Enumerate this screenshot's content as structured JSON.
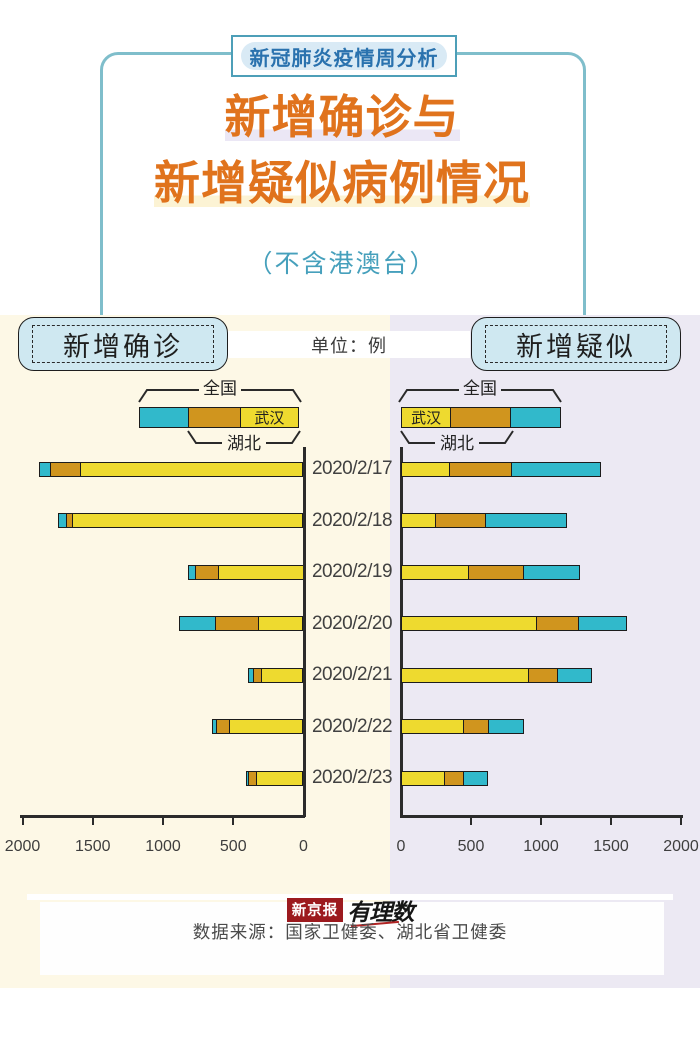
{
  "header": {
    "badge": "新冠肺炎疫情周分析",
    "title_line1": "新增确诊与",
    "title_line2": "新增疑似病例情况",
    "subtitle": "（不含港澳台）"
  },
  "labels": {
    "left_pill": "新增确诊",
    "right_pill": "新增疑似",
    "legend_national": "全国",
    "legend_hubei": "湖北",
    "legend_wuhan": "武汉"
  },
  "colors": {
    "national_cyan": "#31b9cb",
    "hubei_orange": "#d0951e",
    "wuhan_yellow": "#eeda2f",
    "bar_border": "#1c1c1c",
    "title_orange": "#e0731d",
    "teal_accent": "#7fbecb",
    "left_panel_bg": "#fdf8e6",
    "right_panel_bg": "#ece9f3"
  },
  "footer": {
    "logo_box": "新京报",
    "logo_script": "有理数",
    "source": "数据来源：国家卫健委、湖北省卫健委"
  },
  "chart_data": {
    "type": "bar",
    "layout": "mirrored-horizontal-stacked",
    "unit_label": "单位：例",
    "categories": [
      "2020/2/17",
      "2020/2/18",
      "2020/2/19",
      "2020/2/20",
      "2020/2/21",
      "2020/2/22",
      "2020/2/23"
    ],
    "axis": {
      "min": 0,
      "max": 2000,
      "ticks": [
        0,
        500,
        1000,
        1500,
        2000
      ]
    },
    "series_names": {
      "national": "全国",
      "hubei": "湖北",
      "wuhan": "武汉"
    },
    "left": {
      "title": "新增确诊",
      "national": [
        1886,
        1749,
        820,
        889,
        397,
        648,
        409
      ],
      "hubei": [
        1807,
        1693,
        775,
        631,
        366,
        630,
        398
      ],
      "wuhan": [
        1600,
        1660,
        615,
        319,
        314,
        541,
        348
      ]
    },
    "right": {
      "title": "新增疑似",
      "national": [
        1432,
        1185,
        1277,
        1614,
        1361,
        882,
        620
      ],
      "hubei": [
        790,
        600,
        875,
        1275,
        1120,
        630,
        450
      ],
      "wuhan": [
        340,
        240,
        480,
        975,
        920,
        450,
        315
      ]
    }
  }
}
